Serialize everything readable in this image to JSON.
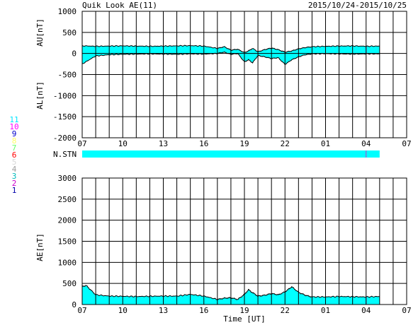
{
  "header": {
    "title": "Quik Look AE(11)",
    "date_range": "2015/10/24-2015/10/25"
  },
  "legend_numbers": [
    {
      "label": "11",
      "color": "#00e5ff"
    },
    {
      "label": "10",
      "color": "#ff00ff"
    },
    {
      "label": "9",
      "color": "#0000cc"
    },
    {
      "label": "8",
      "color": "#ffff66"
    },
    {
      "label": "7",
      "color": "#66ff66"
    },
    {
      "label": "6",
      "color": "#ff0000"
    },
    {
      "label": "5",
      "color": "#d8d8d8"
    },
    {
      "label": "4",
      "color": "#a0a0a0"
    },
    {
      "label": "3",
      "color": "#00bcbc"
    },
    {
      "label": "2",
      "color": "#cc00cc"
    },
    {
      "label": "1",
      "color": "#0000aa"
    }
  ],
  "colors": {
    "fill": "#00ffff",
    "line": "#000000",
    "marker": "#cc33cc",
    "grid": "#000000"
  },
  "chart_data": [
    {
      "type": "area",
      "panel": "AU/AL",
      "ylabel_top": "AU[nT]",
      "ylabel_bottom": "AL[nT]",
      "ylim": [
        -2000,
        1000
      ],
      "yticks": [
        1000,
        500,
        0,
        -500,
        -1000,
        -1500,
        -2000
      ],
      "xticks": [
        "07",
        "10",
        "13",
        "16",
        "19",
        "22",
        "01",
        "04",
        "07"
      ],
      "x_hours": [
        7,
        8,
        9,
        10,
        11,
        12,
        13,
        14,
        15,
        16,
        17,
        17.5,
        18,
        18.5,
        19,
        19.3,
        19.6,
        20,
        20.5,
        21,
        21.5,
        22,
        22.5,
        23,
        23.5,
        24,
        25,
        26,
        27,
        28,
        29
      ],
      "series": [
        {
          "values": [
            180,
            170,
            175,
            180,
            175,
            170,
            175,
            180,
            185,
            175,
            120,
            160,
            80,
            100,
            20,
            60,
            120,
            40,
            90,
            130,
            90,
            30,
            60,
            110,
            140,
            160,
            170,
            175,
            180,
            170,
            175
          ]
        },
        {
          "values": [
            -250,
            -60,
            -30,
            -20,
            -15,
            -10,
            -15,
            -20,
            -10,
            -15,
            0,
            30,
            -20,
            0,
            -200,
            -150,
            -220,
            -50,
            -80,
            -120,
            -100,
            -260,
            -150,
            -80,
            -30,
            -10,
            -5,
            -10,
            -15,
            -10,
            -10
          ]
        }
      ],
      "grid": true
    },
    {
      "type": "bar",
      "panel": "N.STN",
      "label": "N.STN",
      "value": 11
    },
    {
      "type": "area",
      "panel": "AE",
      "ylabel": "AE[nT]",
      "xlabel": "Time [UT]",
      "ylim": [
        0,
        3000
      ],
      "yticks": [
        3000,
        2500,
        2000,
        1500,
        1000,
        500,
        0
      ],
      "xticks": [
        "07",
        "10",
        "13",
        "16",
        "19",
        "22",
        "01",
        "04",
        "07"
      ],
      "x_hours": [
        7,
        7.3,
        8,
        9,
        10,
        11,
        12,
        13,
        14,
        15,
        16,
        17,
        17.5,
        18,
        18.5,
        19,
        19.3,
        19.6,
        20,
        20.5,
        21,
        21.5,
        22,
        22.5,
        23,
        23.5,
        24,
        25,
        26,
        27,
        28,
        29
      ],
      "values": [
        430,
        450,
        230,
        200,
        195,
        190,
        195,
        200,
        200,
        240,
        200,
        120,
        150,
        160,
        120,
        240,
        350,
        280,
        200,
        220,
        260,
        230,
        300,
        420,
        290,
        220,
        180,
        180,
        190,
        185,
        180,
        190
      ],
      "grid": true
    }
  ]
}
